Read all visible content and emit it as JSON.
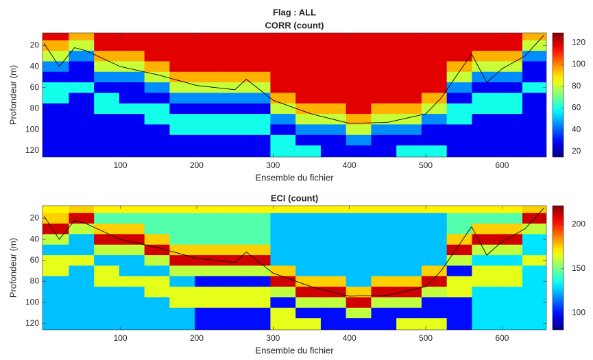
{
  "chart_data": [
    {
      "type": "heatmap",
      "supertitle": "Flag : ALL",
      "title": "CORR (count)",
      "xlabel": "Ensemble du fichier",
      "ylabel": "Profondeur (m)",
      "xlim": [
        -2,
        658
      ],
      "xticks": [
        100,
        200,
        300,
        400,
        500,
        600
      ],
      "ylim": [
        8,
        126
      ],
      "yticks": [
        20,
        40,
        60,
        80,
        100,
        120
      ],
      "y_reversed": true,
      "colormap": "jet",
      "clim": [
        15,
        129
      ],
      "cticks": [
        20,
        40,
        60,
        80,
        100,
        120
      ],
      "x": [
        16,
        49,
        82,
        115,
        148,
        181,
        214,
        247,
        280,
        313,
        346,
        379,
        412,
        445,
        478,
        511,
        544,
        577,
        610,
        643
      ],
      "y": [
        10,
        20,
        30,
        40,
        50,
        60,
        70,
        80,
        90,
        100,
        110,
        120
      ],
      "z": [
        [
          118,
          95,
          118,
          118,
          118,
          118,
          118,
          118,
          118,
          118,
          118,
          118,
          118,
          118,
          118,
          118,
          118,
          118,
          118,
          95
        ],
        [
          95,
          80,
          118,
          118,
          118,
          118,
          118,
          118,
          118,
          118,
          118,
          118,
          118,
          118,
          118,
          118,
          118,
          118,
          118,
          80
        ],
        [
          80,
          45,
          95,
          95,
          118,
          118,
          118,
          118,
          118,
          118,
          118,
          118,
          118,
          118,
          118,
          118,
          118,
          95,
          95,
          45
        ],
        [
          45,
          28,
          80,
          80,
          95,
          118,
          118,
          118,
          118,
          118,
          118,
          118,
          118,
          118,
          118,
          118,
          95,
          80,
          80,
          28
        ],
        [
          28,
          28,
          45,
          45,
          80,
          95,
          95,
          95,
          95,
          118,
          118,
          118,
          118,
          118,
          118,
          118,
          80,
          45,
          45,
          28
        ],
        [
          60,
          60,
          28,
          28,
          45,
          80,
          80,
          80,
          80,
          118,
          118,
          118,
          118,
          118,
          118,
          118,
          45,
          28,
          28,
          60
        ],
        [
          60,
          28,
          60,
          28,
          28,
          45,
          45,
          45,
          45,
          95,
          118,
          118,
          118,
          118,
          118,
          95,
          28,
          60,
          60,
          28
        ],
        [
          28,
          28,
          60,
          60,
          60,
          28,
          28,
          28,
          28,
          80,
          95,
          95,
          118,
          95,
          95,
          80,
          60,
          60,
          60,
          28
        ],
        [
          28,
          28,
          28,
          28,
          60,
          60,
          60,
          60,
          60,
          45,
          80,
          80,
          95,
          80,
          80,
          45,
          60,
          28,
          28,
          28
        ],
        [
          28,
          28,
          28,
          28,
          28,
          60,
          60,
          60,
          60,
          28,
          45,
          45,
          80,
          45,
          45,
          28,
          28,
          28,
          28,
          28
        ],
        [
          28,
          28,
          28,
          28,
          28,
          28,
          28,
          28,
          28,
          60,
          28,
          28,
          45,
          28,
          28,
          28,
          28,
          28,
          28,
          28
        ],
        [
          28,
          28,
          28,
          28,
          28,
          28,
          28,
          28,
          28,
          60,
          60,
          28,
          28,
          28,
          60,
          60,
          28,
          28,
          28,
          28
        ]
      ],
      "lines": [
        {
          "color": "#000000",
          "x": [
            0,
            20,
            40,
            55,
            100,
            150,
            200,
            250,
            265,
            300,
            350,
            400,
            450,
            500,
            520,
            560,
            580,
            600,
            630,
            655
          ],
          "y": [
            18,
            40,
            22,
            25,
            40,
            48,
            58,
            62,
            52,
            72,
            85,
            94,
            93,
            85,
            70,
            28,
            55,
            42,
            30,
            10
          ]
        }
      ]
    },
    {
      "type": "heatmap",
      "title": "ECI (count)",
      "xlabel": "Ensemble du fichier",
      "ylabel": "Profondeur (m)",
      "xlim": [
        -2,
        658
      ],
      "xticks": [
        100,
        200,
        300,
        400,
        500,
        600
      ],
      "ylim": [
        8,
        126
      ],
      "yticks": [
        20,
        40,
        60,
        80,
        100,
        120
      ],
      "y_reversed": true,
      "colormap": "jet",
      "clim": [
        81,
        221
      ],
      "cticks": [
        100,
        150,
        200
      ],
      "x": [
        16,
        49,
        82,
        115,
        148,
        181,
        214,
        247,
        280,
        313,
        346,
        379,
        412,
        445,
        478,
        511,
        544,
        577,
        610,
        643
      ],
      "y": [
        10,
        20,
        30,
        40,
        50,
        60,
        70,
        80,
        90,
        100,
        110,
        120
      ],
      "z": [
        [
          170,
          175,
          170,
          170,
          170,
          170,
          170,
          170,
          170,
          170,
          170,
          170,
          170,
          170,
          170,
          170,
          170,
          170,
          170,
          175
        ],
        [
          175,
          210,
          145,
          145,
          145,
          145,
          145,
          145,
          145,
          125,
          125,
          125,
          125,
          125,
          125,
          125,
          145,
          145,
          145,
          210
        ],
        [
          210,
          160,
          175,
          175,
          145,
          145,
          145,
          145,
          145,
          125,
          125,
          125,
          125,
          125,
          125,
          125,
          145,
          175,
          175,
          160
        ],
        [
          160,
          125,
          210,
          210,
          175,
          145,
          145,
          145,
          145,
          125,
          125,
          125,
          125,
          125,
          125,
          125,
          175,
          210,
          210,
          130
        ],
        [
          125,
          125,
          160,
          160,
          210,
          175,
          175,
          175,
          175,
          125,
          125,
          125,
          125,
          125,
          125,
          125,
          210,
          160,
          160,
          130
        ],
        [
          165,
          165,
          125,
          125,
          160,
          210,
          210,
          210,
          210,
          125,
          125,
          125,
          125,
          125,
          125,
          125,
          160,
          130,
          130,
          165
        ],
        [
          165,
          125,
          165,
          125,
          125,
          160,
          160,
          160,
          160,
          175,
          125,
          125,
          125,
          125,
          125,
          175,
          100,
          165,
          165,
          130
        ],
        [
          125,
          125,
          165,
          165,
          165,
          125,
          100,
          100,
          100,
          210,
          175,
          175,
          125,
          175,
          175,
          210,
          165,
          165,
          165,
          130
        ],
        [
          125,
          125,
          125,
          125,
          165,
          165,
          165,
          165,
          165,
          160,
          210,
          210,
          175,
          210,
          210,
          160,
          165,
          130,
          130,
          130
        ],
        [
          125,
          125,
          125,
          125,
          125,
          165,
          165,
          165,
          165,
          100,
          160,
          160,
          210,
          160,
          160,
          100,
          100,
          130,
          130,
          130
        ],
        [
          125,
          125,
          125,
          125,
          125,
          125,
          100,
          100,
          100,
          165,
          100,
          100,
          160,
          100,
          100,
          100,
          100,
          130,
          130,
          130
        ],
        [
          125,
          125,
          125,
          125,
          125,
          125,
          100,
          100,
          100,
          165,
          165,
          100,
          100,
          100,
          165,
          165,
          100,
          130,
          130,
          130
        ]
      ],
      "lines": [
        {
          "color": "#000000",
          "x": [
            0,
            20,
            40,
            55,
            100,
            150,
            200,
            250,
            265,
            300,
            350,
            400,
            450,
            500,
            520,
            560,
            580,
            600,
            630,
            655
          ],
          "y": [
            18,
            40,
            22,
            25,
            40,
            48,
            58,
            62,
            52,
            72,
            85,
            94,
            93,
            85,
            70,
            28,
            55,
            42,
            30,
            10
          ]
        }
      ]
    }
  ]
}
